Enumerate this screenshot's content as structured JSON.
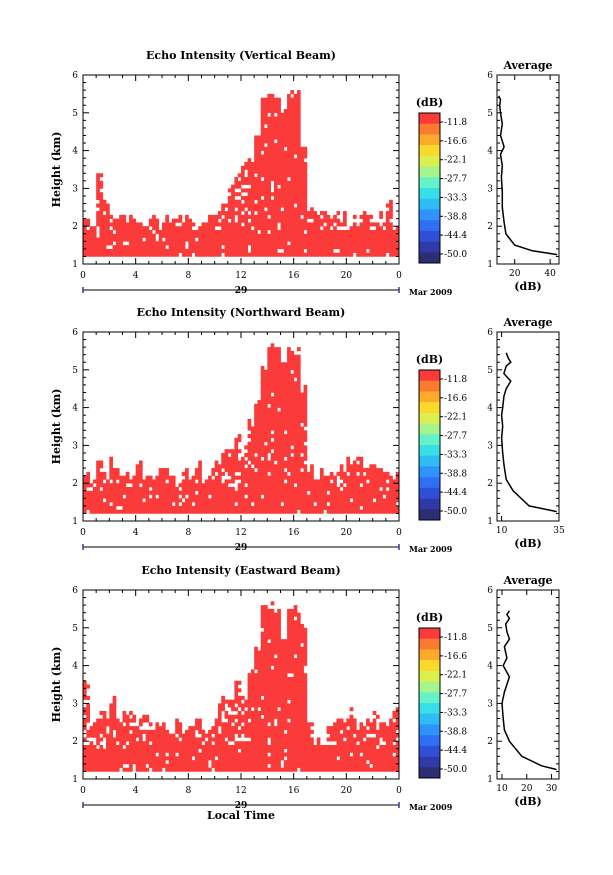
{
  "colors": {
    "echo": "#fb3a3a",
    "colorbar": [
      "#2c2e74",
      "#2f3aa8",
      "#2f4fd6",
      "#2f6ff5",
      "#2f93fb",
      "#2fbbf4",
      "#39dfe6",
      "#66f2c8",
      "#a5f58c",
      "#dcef4e",
      "#fbd92c",
      "#fbaa2a",
      "#fb7a2d",
      "#fb3a3a"
    ]
  },
  "shared": {
    "colorbar_title": "(dB)",
    "colorbar_ticks": [
      "-11.8",
      "-16.6",
      "-22.1",
      "-27.7",
      "-33.3",
      "-38.8",
      "-44.4",
      "-50.0"
    ],
    "date_day": "29",
    "date_month": "Mar 2009",
    "average_title": "Average",
    "average_xlabel": "(dB)",
    "xlabel": "Local Time",
    "ylabel": "Height (km)"
  },
  "chart_data": [
    {
      "type": "heatmap",
      "title": "Echo Intensity (Vertical Beam)",
      "ylabel": "Height (km)",
      "xlim": [
        0,
        24
      ],
      "ylim": [
        1,
        6
      ],
      "x_ticks": [
        "0",
        "4",
        "8",
        "12",
        "16",
        "20",
        "0"
      ],
      "y_ticks": [
        "1",
        "2",
        "3",
        "4",
        "5",
        "6"
      ],
      "colorbar": {
        "label": "(dB)",
        "ticks": [
          -11.8,
          -16.6,
          -22.1,
          -27.7,
          -33.3,
          -38.8,
          -44.4,
          -50.0
        ]
      },
      "echo_extent": [
        [
          0,
          2.1
        ],
        [
          0.5,
          2.0
        ],
        [
          1,
          3.5
        ],
        [
          1.5,
          2.6
        ],
        [
          2,
          2.3
        ],
        [
          2.5,
          2.2
        ],
        [
          3,
          2.1
        ],
        [
          3.5,
          2.2
        ],
        [
          4,
          2.2
        ],
        [
          4.5,
          2.1
        ],
        [
          5,
          2.2
        ],
        [
          5.5,
          2.2
        ],
        [
          6,
          2.1
        ],
        [
          6.5,
          2.0
        ],
        [
          7,
          2.2
        ],
        [
          7.5,
          2.3
        ],
        [
          8,
          2.2
        ],
        [
          8.5,
          2.0
        ],
        [
          9,
          2.1
        ],
        [
          9.5,
          2.2
        ],
        [
          10,
          2.3
        ],
        [
          10.5,
          2.6
        ],
        [
          11,
          3.0
        ],
        [
          11.5,
          3.2
        ],
        [
          12,
          3.5
        ],
        [
          12.5,
          3.8
        ],
        [
          13,
          4.5
        ],
        [
          13.5,
          5.3
        ],
        [
          14,
          5.5
        ],
        [
          14.5,
          5.5
        ],
        [
          15,
          5.0
        ],
        [
          15.5,
          5.5
        ],
        [
          16,
          5.5
        ],
        [
          16.5,
          4.0
        ],
        [
          17,
          2.4
        ],
        [
          17.5,
          2.2
        ],
        [
          18,
          2.2
        ],
        [
          18.5,
          2.1
        ],
        [
          19,
          2.3
        ],
        [
          19.5,
          2.2
        ],
        [
          20,
          2.0
        ],
        [
          20.5,
          2.2
        ],
        [
          21,
          2.3
        ],
        [
          21.5,
          2.2
        ],
        [
          22,
          2.1
        ],
        [
          22.5,
          2.2
        ],
        [
          23,
          2.6
        ],
        [
          23.5,
          2.0
        ]
      ],
      "average": {
        "xlim": [
          10,
          45
        ],
        "x_ticks": [
          "20",
          "40"
        ],
        "x": [
          44,
          30,
          20,
          15,
          14,
          13,
          13,
          12.5,
          13,
          12,
          14,
          12,
          13,
          12,
          11.5,
          12,
          11
        ],
        "y": [
          1.25,
          1.35,
          1.5,
          1.8,
          2.1,
          2.5,
          2.9,
          3.3,
          3.6,
          3.9,
          4.1,
          4.4,
          4.7,
          5.0,
          5.2,
          5.35,
          5.45
        ]
      }
    },
    {
      "type": "heatmap",
      "title": "Echo Intensity (Northward Beam)",
      "ylabel": "Height (km)",
      "xlim": [
        0,
        24
      ],
      "ylim": [
        1,
        6
      ],
      "x_ticks": [
        "0",
        "4",
        "8",
        "12",
        "16",
        "20",
        "0"
      ],
      "y_ticks": [
        "1",
        "2",
        "3",
        "4",
        "5",
        "6"
      ],
      "colorbar": {
        "label": "(dB)",
        "ticks": [
          -11.8,
          -16.6,
          -22.1,
          -27.7,
          -33.3,
          -38.8,
          -44.4,
          -50.0
        ]
      },
      "echo_extent": [
        [
          0,
          2.4
        ],
        [
          0.5,
          2.2
        ],
        [
          1,
          2.6
        ],
        [
          1.5,
          2.3
        ],
        [
          2,
          2.5
        ],
        [
          2.5,
          2.2
        ],
        [
          3,
          2.3
        ],
        [
          3.5,
          2.2
        ],
        [
          4,
          2.5
        ],
        [
          4.5,
          2.1
        ],
        [
          5,
          2.2
        ],
        [
          5.5,
          2.3
        ],
        [
          6,
          2.2
        ],
        [
          6.5,
          2.1
        ],
        [
          7,
          2.0
        ],
        [
          7.5,
          2.3
        ],
        [
          8,
          2.1
        ],
        [
          8.5,
          2.5
        ],
        [
          9,
          2.2
        ],
        [
          9.5,
          2.3
        ],
        [
          10,
          2.5
        ],
        [
          10.5,
          2.8
        ],
        [
          11,
          3.0
        ],
        [
          11.5,
          3.2
        ],
        [
          12,
          3.0
        ],
        [
          12.5,
          3.5
        ],
        [
          13,
          4.2
        ],
        [
          13.5,
          5.0
        ],
        [
          14,
          5.5
        ],
        [
          14.5,
          5.5
        ],
        [
          15,
          5.0
        ],
        [
          15.5,
          5.4
        ],
        [
          16,
          5.5
        ],
        [
          16.5,
          4.5
        ],
        [
          17,
          2.3
        ],
        [
          17.5,
          2.1
        ],
        [
          18,
          2.2
        ],
        [
          18.5,
          2.3
        ],
        [
          19,
          2.1
        ],
        [
          19.5,
          2.5
        ],
        [
          20,
          2.7
        ],
        [
          20.5,
          2.6
        ],
        [
          21,
          2.5
        ],
        [
          21.5,
          2.3
        ],
        [
          22,
          2.6
        ],
        [
          22.5,
          2.5
        ],
        [
          23,
          2.3
        ],
        [
          23.5,
          2.2
        ]
      ],
      "average": {
        "xlim": [
          8,
          35
        ],
        "x_ticks": [
          "10",
          "35"
        ],
        "x": [
          34,
          22,
          15,
          12,
          11,
          10.5,
          10,
          10.5,
          10,
          10.5,
          11,
          12,
          14,
          11,
          12,
          14,
          13,
          12
        ],
        "y": [
          1.25,
          1.4,
          1.8,
          2.1,
          2.5,
          2.8,
          3.2,
          3.5,
          3.8,
          4.0,
          4.3,
          4.5,
          4.7,
          4.9,
          5.1,
          5.2,
          5.3,
          5.45
        ]
      }
    },
    {
      "type": "heatmap",
      "title": "Echo Intensity (Eastward Beam)",
      "ylabel": "Height (km)",
      "xlabel": "Local Time",
      "xlim": [
        0,
        24
      ],
      "ylim": [
        1,
        6
      ],
      "x_ticks": [
        "0",
        "4",
        "8",
        "12",
        "16",
        "20",
        "0"
      ],
      "y_ticks": [
        "1",
        "2",
        "3",
        "4",
        "5",
        "6"
      ],
      "colorbar": {
        "label": "(dB)",
        "ticks": [
          -11.8,
          -16.6,
          -22.1,
          -27.7,
          -33.3,
          -38.8,
          -44.4,
          -50.0
        ]
      },
      "echo_extent": [
        [
          0,
          3.6
        ],
        [
          0.5,
          2.3
        ],
        [
          1,
          2.7
        ],
        [
          1.5,
          2.6
        ],
        [
          2,
          3.2
        ],
        [
          2.5,
          2.5
        ],
        [
          3,
          2.6
        ],
        [
          3.5,
          2.7
        ],
        [
          4,
          2.5
        ],
        [
          4.5,
          2.6
        ],
        [
          5,
          2.4
        ],
        [
          5.5,
          2.5
        ],
        [
          6,
          2.4
        ],
        [
          6.5,
          2.3
        ],
        [
          7,
          2.4
        ],
        [
          7.5,
          2.2
        ],
        [
          8,
          2.5
        ],
        [
          8.5,
          2.6
        ],
        [
          9,
          2.3
        ],
        [
          9.5,
          2.4
        ],
        [
          10,
          2.8
        ],
        [
          10.5,
          3.0
        ],
        [
          11,
          3.2
        ],
        [
          11.5,
          3.6
        ],
        [
          12,
          3.0
        ],
        [
          12.5,
          3.8
        ],
        [
          13,
          4.5
        ],
        [
          13.5,
          5.5
        ],
        [
          14,
          5.5
        ],
        [
          14.5,
          5.5
        ],
        [
          15,
          4.8
        ],
        [
          15.5,
          5.5
        ],
        [
          16,
          5.5
        ],
        [
          16.5,
          5.0
        ],
        [
          17,
          2.4
        ],
        [
          17.5,
          2.0
        ],
        [
          18,
          1.9
        ],
        [
          18.5,
          2.3
        ],
        [
          19,
          2.5
        ],
        [
          19.5,
          2.6
        ],
        [
          20,
          2.8
        ],
        [
          20.5,
          2.5
        ],
        [
          21,
          2.3
        ],
        [
          21.5,
          2.6
        ],
        [
          22,
          2.7
        ],
        [
          22.5,
          2.4
        ],
        [
          23,
          2.5
        ],
        [
          23.5,
          2.9
        ]
      ],
      "average": {
        "xlim": [
          8,
          33
        ],
        "x_ticks": [
          "10",
          "20",
          "30"
        ],
        "x": [
          32,
          26,
          18,
          13,
          11,
          10.5,
          10,
          11,
          13,
          10.5,
          12,
          11,
          13,
          12,
          11.5,
          13,
          12,
          13
        ],
        "y": [
          1.25,
          1.35,
          1.6,
          2.0,
          2.3,
          2.6,
          3.0,
          3.3,
          3.7,
          4.0,
          4.2,
          4.5,
          4.7,
          4.9,
          5.1,
          5.25,
          5.35,
          5.45
        ]
      }
    }
  ]
}
